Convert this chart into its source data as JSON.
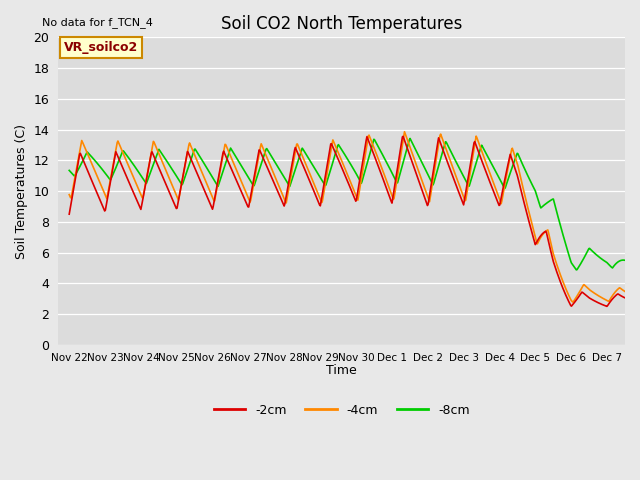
{
  "title": "Soil CO2 North Temperatures",
  "subtitle": "No data for f_TCN_4",
  "ylabel": "Soil Temperatures (C)",
  "xlabel": "Time",
  "annotation": "VR_soilco2",
  "ylim": [
    0,
    20
  ],
  "background_color": "#e8e8e8",
  "plot_bg_color": "#dcdcdc",
  "grid_color": "#ffffff",
  "line_colors": {
    "-2cm": "#dd0000",
    "-4cm": "#ff8800",
    "-8cm": "#00cc00"
  },
  "legend_labels": [
    "-2cm",
    "-4cm",
    "-8cm"
  ],
  "xtick_labels": [
    "Nov 22",
    "Nov 23",
    "Nov 24",
    "Nov 25",
    "Nov 26",
    "Nov 27",
    "Nov 28",
    "Nov 29",
    "Nov 30",
    "Dec 1",
    "Dec 2",
    "Dec 3",
    "Dec 4",
    "Dec 5",
    "Dec 6",
    "Dec 7"
  ],
  "figsize": [
    6.4,
    4.8
  ],
  "dpi": 100
}
